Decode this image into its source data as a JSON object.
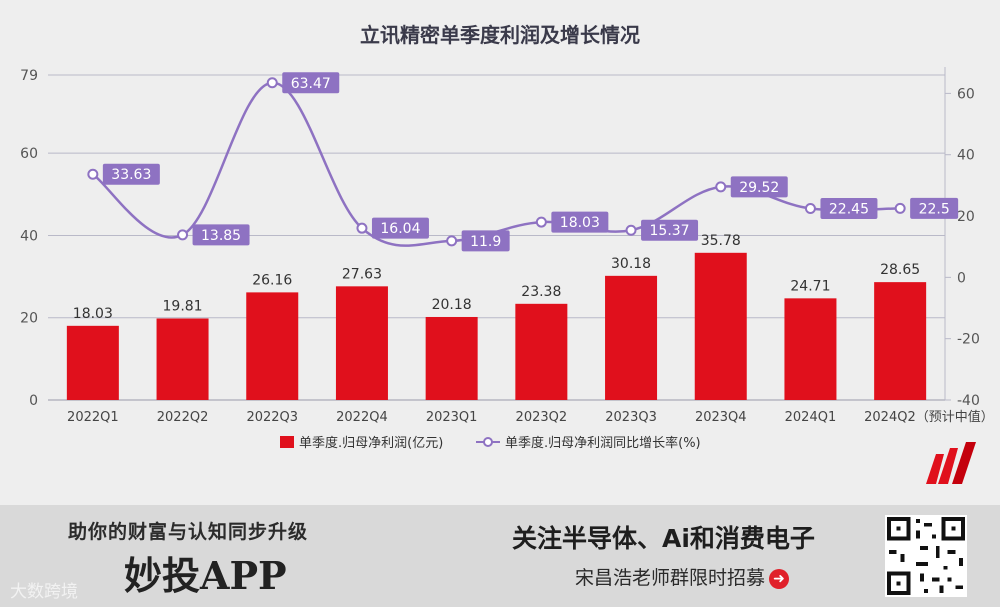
{
  "chart_data": {
    "type": "bar",
    "title": "立讯精密单季度利润及增长情况",
    "categories": [
      "2022Q1",
      "2022Q2",
      "2022Q3",
      "2022Q4",
      "2023Q1",
      "2023Q2",
      "2023Q3",
      "2023Q4",
      "2024Q1",
      "2024Q2（预计中值）"
    ],
    "series": [
      {
        "name": "单季度.归母净利润(亿元)",
        "type": "bar",
        "axis": "left",
        "color": "#e0101c",
        "values": [
          18.03,
          19.81,
          26.16,
          27.63,
          20.18,
          23.38,
          30.18,
          35.78,
          24.71,
          28.65
        ]
      },
      {
        "name": "单季度.归母净利润同比增长率(%)",
        "type": "line",
        "axis": "right",
        "color": "#8e72c2",
        "values": [
          33.63,
          13.85,
          63.47,
          16.04,
          11.9,
          18.03,
          15.37,
          29.52,
          22.45,
          22.5
        ]
      }
    ],
    "left_axis": {
      "ylim": [
        0,
        79
      ],
      "ticks": [
        0,
        20,
        40,
        60,
        79
      ]
    },
    "right_axis": {
      "ylim": [
        -40,
        66
      ],
      "ticks": [
        -40,
        -20,
        0,
        20,
        40,
        60
      ]
    },
    "legend_position": "bottom",
    "grid": true
  },
  "banner": {
    "slogan": "助你的财富与认知同步升级",
    "app_name": "妙投APP",
    "watermark": "大数跨境",
    "follow_text": "关注半导体、Ai和消费电子",
    "recruit_text": "宋昌浩老师群限时招募"
  }
}
